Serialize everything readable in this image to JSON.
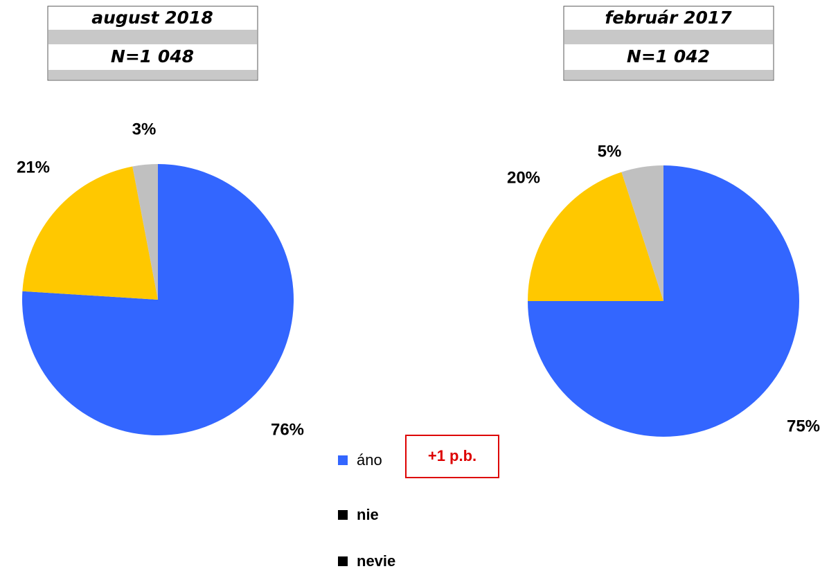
{
  "chart_data": [
    {
      "type": "pie",
      "title": "august 2018",
      "subtitle": "N=1 048",
      "categories": [
        "áno",
        "nie",
        "nevie"
      ],
      "values": [
        76,
        21,
        3
      ],
      "value_labels": [
        "76%",
        "21%",
        "3%"
      ],
      "colors": [
        "#3366ff",
        "#ffc800",
        "#c0c0c0"
      ],
      "legend_colors": [
        "#3366ff",
        "#000000",
        "#000000"
      ],
      "annotation": "+1 p.b."
    },
    {
      "type": "pie",
      "title": "február 2017",
      "subtitle": "N=1 042",
      "categories": [
        "áno",
        "nie",
        "nevie"
      ],
      "values": [
        75,
        20,
        5
      ],
      "value_labels": [
        "75%",
        "20%",
        "5%"
      ],
      "colors": [
        "#3366ff",
        "#ffc800",
        "#c0c0c0"
      ]
    }
  ]
}
